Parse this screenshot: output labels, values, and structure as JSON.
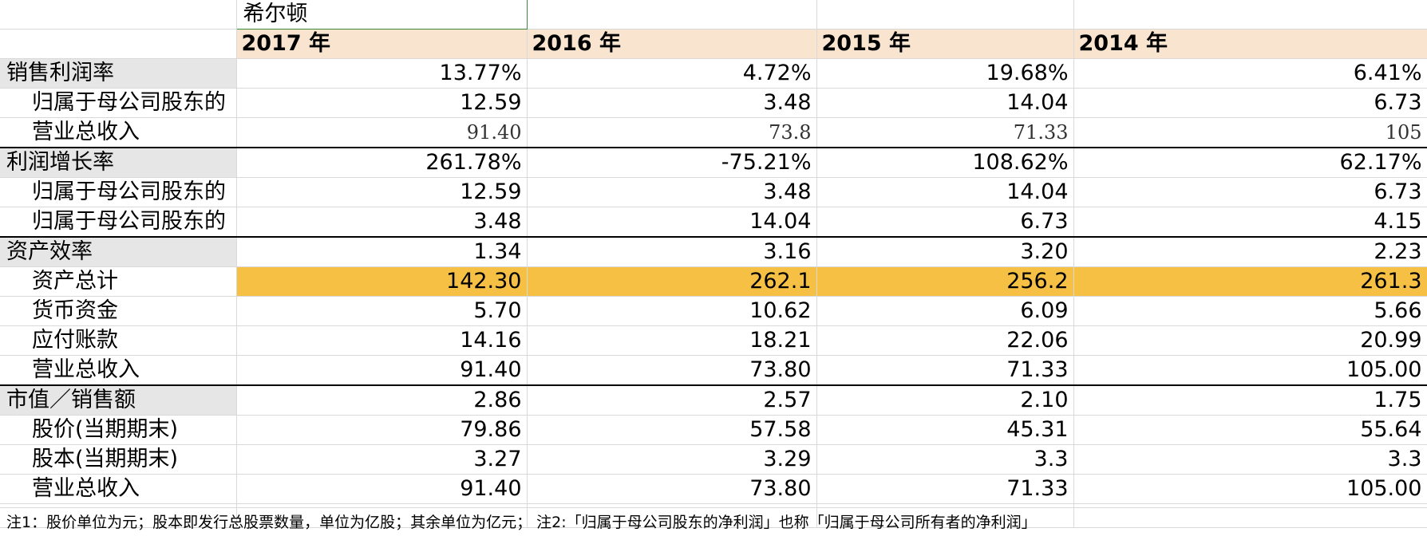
{
  "sheet": {
    "company": "希尔顿",
    "years": [
      "2017 年",
      "2016 年",
      "2015 年",
      "2014 年"
    ],
    "rows": [
      {
        "label": "销售利润率",
        "values": [
          "13.77%",
          "4.72%",
          "19.68%",
          "6.41%"
        ]
      },
      {
        "label": "归属于母公司股东的",
        "values": [
          "12.59",
          "3.48",
          "14.04",
          "6.73"
        ]
      },
      {
        "label": "营业总收入",
        "values": [
          "91.40",
          "73.8",
          "71.33",
          "105"
        ]
      },
      {
        "label": "利润增长率",
        "values": [
          "261.78%",
          "-75.21%",
          "108.62%",
          "62.17%"
        ]
      },
      {
        "label": "归属于母公司股东的",
        "values": [
          "12.59",
          "3.48",
          "14.04",
          "6.73"
        ]
      },
      {
        "label": "归属于母公司股东的",
        "values": [
          "3.48",
          "14.04",
          "6.73",
          "4.15"
        ]
      },
      {
        "label": "资产效率",
        "values": [
          "1.34",
          "3.16",
          "3.20",
          "2.23"
        ]
      },
      {
        "label": "资产总计",
        "values": [
          "142.30",
          "262.1",
          "256.2",
          "261.3"
        ]
      },
      {
        "label": "货币资金",
        "values": [
          "5.70",
          "10.62",
          "6.09",
          "5.66"
        ]
      },
      {
        "label": "应付账款",
        "values": [
          "14.16",
          "18.21",
          "22.06",
          "20.99"
        ]
      },
      {
        "label": "营业总收入",
        "values": [
          "91.40",
          "73.80",
          "71.33",
          "105.00"
        ]
      },
      {
        "label": "市值／销售额",
        "values": [
          "2.86",
          "2.57",
          "2.10",
          "1.75"
        ]
      },
      {
        "label": "股价(当期期末)",
        "values": [
          "79.86",
          "57.58",
          "45.31",
          "55.64"
        ]
      },
      {
        "label": "股本(当期期末)",
        "values": [
          "3.27",
          "3.29",
          "3.3",
          "3.3"
        ]
      },
      {
        "label": "营业总收入",
        "values": [
          "91.40",
          "73.80",
          "71.33",
          "105.00"
        ]
      }
    ],
    "note": "注1：股价单位为元；股本即发行总股票数量，单位为亿股；其余单位为亿元；  注2:「归属于母公司股东的净利润」也称「归属于母公司所有者的净利润」"
  },
  "colors": {
    "year_header_bg": "#f9e4d0",
    "highlight_row_bg": "#f6c045",
    "section_label_bg": "#e6e6e6",
    "gridline": "#d9d9d9"
  }
}
